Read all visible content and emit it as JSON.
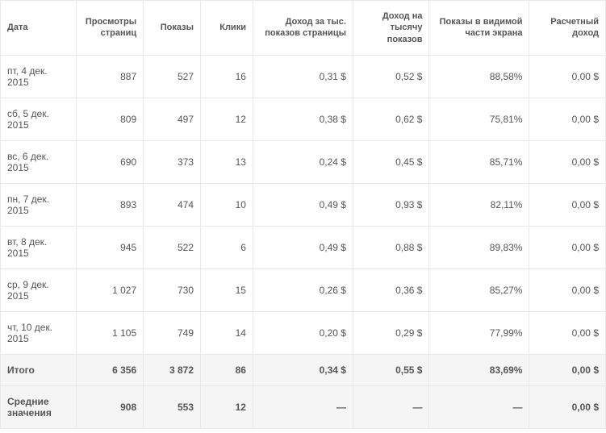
{
  "table": {
    "columns": [
      "Дата",
      "Просмотры страниц",
      "Показы",
      "Клики",
      "Доход за тыс. показов страницы",
      "Доход на тысячу показов",
      "Показы в видимой части экрана",
      "Расчетный доход"
    ],
    "rows": [
      {
        "date": "пт, 4 дек. 2015",
        "views": "887",
        "shows": "527",
        "clicks": "16",
        "rev1": "0,31 $",
        "rev2": "0,52 $",
        "visible": "88,58%",
        "calc": "0,00 $"
      },
      {
        "date": "сб, 5 дек. 2015",
        "views": "809",
        "shows": "497",
        "clicks": "12",
        "rev1": "0,38 $",
        "rev2": "0,62 $",
        "visible": "75,81%",
        "calc": "0,00 $"
      },
      {
        "date": "вс, 6 дек. 2015",
        "views": "690",
        "shows": "373",
        "clicks": "13",
        "rev1": "0,24 $",
        "rev2": "0,45 $",
        "visible": "85,71%",
        "calc": "0,00 $"
      },
      {
        "date": "пн, 7 дек. 2015",
        "views": "893",
        "shows": "474",
        "clicks": "10",
        "rev1": "0,49 $",
        "rev2": "0,93 $",
        "visible": "82,11%",
        "calc": "0,00 $"
      },
      {
        "date": "вт, 8 дек. 2015",
        "views": "945",
        "shows": "522",
        "clicks": "6",
        "rev1": "0,49 $",
        "rev2": "0,88 $",
        "visible": "89,83%",
        "calc": "0,00 $"
      },
      {
        "date": "ср, 9 дек. 2015",
        "views": "1 027",
        "shows": "730",
        "clicks": "15",
        "rev1": "0,26 $",
        "rev2": "0,36 $",
        "visible": "85,27%",
        "calc": "0,00 $"
      },
      {
        "date": "чт, 10 дек. 2015",
        "views": "1 105",
        "shows": "749",
        "clicks": "14",
        "rev1": "0,20 $",
        "rev2": "0,29 $",
        "visible": "77,99%",
        "calc": "0,00 $"
      }
    ],
    "totals": {
      "date": "Итого",
      "views": "6 356",
      "shows": "3 872",
      "clicks": "86",
      "rev1": "0,34 $",
      "rev2": "0,55 $",
      "visible": "83,69%",
      "calc": "0,00 $"
    },
    "averages": {
      "date": "Средние значения",
      "views": "908",
      "shows": "553",
      "clicks": "12",
      "rev1": "—",
      "rev2": "—",
      "visible": "—",
      "calc": "0,00 $"
    }
  }
}
